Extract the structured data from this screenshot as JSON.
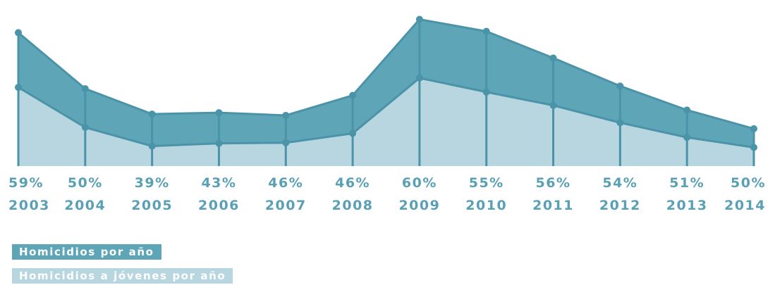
{
  "chart_data": {
    "type": "area",
    "categories": [
      "2003",
      "2004",
      "2005",
      "2006",
      "2007",
      "2008",
      "2009",
      "2010",
      "2011",
      "2012",
      "2013",
      "2014"
    ],
    "percent_labels": [
      "59%",
      "50%",
      "39%",
      "43%",
      "46%",
      "46%",
      "60%",
      "55%",
      "56%",
      "54%",
      "51%",
      "50%"
    ],
    "series": [
      {
        "name": "Homicidios por año",
        "color": "#5ea6b7",
        "values": [
          100,
          58,
          39,
          40,
          38,
          53,
          110,
          101,
          81,
          60,
          42,
          28
        ]
      },
      {
        "name": "Homicidios a jóvenes por año",
        "color": "#b7d6e0",
        "values": [
          59,
          29,
          15,
          17,
          17.5,
          24.5,
          66,
          55.5,
          45.5,
          32.5,
          21.5,
          14
        ]
      }
    ],
    "ylim": [
      0,
      115
    ]
  },
  "legend": {
    "total": "Homicidios por año",
    "youth": "Homicidios a jóvenes por año"
  },
  "colors": {
    "outer_area": "#5ea6b7",
    "inner_area": "#b7d6e0",
    "lines": "#4a93a8",
    "text": "#5aa0b4"
  }
}
